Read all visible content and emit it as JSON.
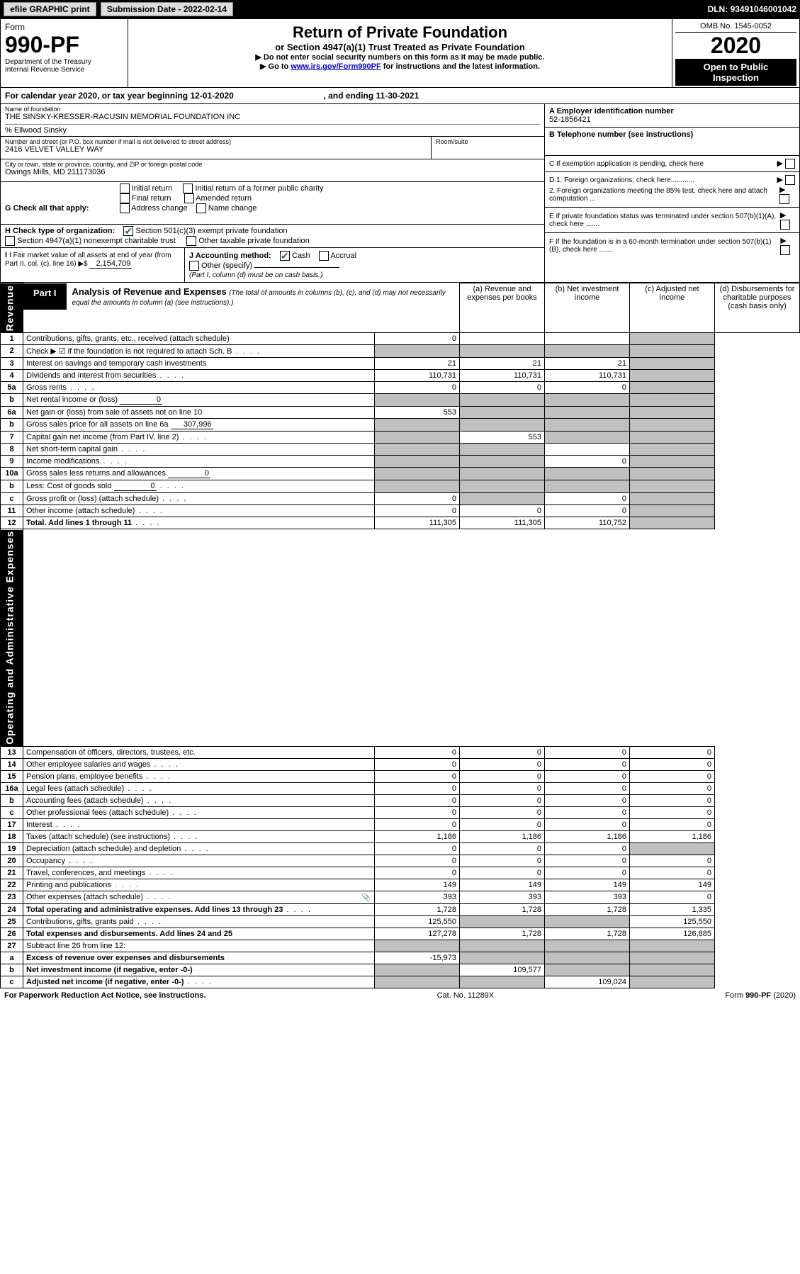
{
  "topbar": {
    "efile_btn": "efile GRAPHIC print",
    "submission_label": "Submission Date - ",
    "submission_date": "2022-02-14",
    "dln_label": "DLN: ",
    "dln": "93491046001042"
  },
  "header": {
    "form_label": "Form",
    "form_number": "990-PF",
    "dept1": "Department of the Treasury",
    "dept2": "Internal Revenue Service",
    "title": "Return of Private Foundation",
    "subtitle": "or Section 4947(a)(1) Trust Treated as Private Foundation",
    "instr1": "▶ Do not enter social security numbers on this form as it may be made public.",
    "instr2_pre": "▶ Go to ",
    "instr2_link": "www.irs.gov/Form990PF",
    "instr2_post": " for instructions and the latest information.",
    "omb": "OMB No. 1545-0052",
    "year": "2020",
    "open1": "Open to Public",
    "open2": "Inspection"
  },
  "cal": {
    "text_pre": "For calendar year 2020, or tax year beginning ",
    "begin": "12-01-2020",
    "mid": " , and ending ",
    "end": "11-30-2021"
  },
  "entity": {
    "name_lbl": "Name of foundation",
    "name": "THE SINSKY-KRESSER-RACUSIN MEMORIAL FOUNDATION INC",
    "care_of": "% Ellwood Sinsky",
    "addr_lbl": "Number and street (or P.O. box number if mail is not delivered to street address)",
    "addr": "2416 VELVET VALLEY WAY",
    "room_lbl": "Room/suite",
    "room": "",
    "city_lbl": "City or town, state or province, country, and ZIP or foreign postal code",
    "city": "Owings Mills, MD  211173036",
    "ein_lbl": "A Employer identification number",
    "ein": "52-1856421",
    "tel_lbl": "B Telephone number (see instructions)",
    "tel": "",
    "c_lbl": "C  If exemption application is pending, check here",
    "d1": "D 1. Foreign organizations, check here............",
    "d2": "2. Foreign organizations meeting the 85% test, check here and attach computation ...",
    "e": "E  If private foundation status was terminated under section 507(b)(1)(A), check here .......",
    "f": "F  If the foundation is in a 60-month termination under section 507(b)(1)(B), check here .......",
    "g_lbl": "G Check all that apply:",
    "g_opts": [
      "Initial return",
      "Initial return of a former public charity",
      "Final return",
      "Amended return",
      "Address change",
      "Name change"
    ],
    "h_lbl": "H Check type of organization:",
    "h1": "Section 501(c)(3) exempt private foundation",
    "h2": "Section 4947(a)(1) nonexempt charitable trust",
    "h3": "Other taxable private foundation",
    "i_lbl": "I Fair market value of all assets at end of year (from Part II, col. (c), line 16) ▶$ ",
    "i_val": "2,154,709",
    "j_lbl": "J Accounting method:",
    "j_cash": "Cash",
    "j_accrual": "Accrual",
    "j_other": "Other (specify)",
    "j_note": "(Part I, column (d) must be on cash basis.)"
  },
  "part1": {
    "tab": "Part I",
    "title": "Analysis of Revenue and Expenses",
    "note": "(The total of amounts in columns (b), (c), and (d) may not necessarily equal the amounts in column (a) (see instructions).)",
    "col_a": "(a)  Revenue and expenses per books",
    "col_b": "(b)  Net investment income",
    "col_c": "(c)  Adjusted net income",
    "col_d": "(d)  Disbursements for charitable purposes (cash basis only)"
  },
  "side": {
    "revenue": "Revenue",
    "expenses": "Operating and Administrative Expenses"
  },
  "rows": [
    {
      "n": "1",
      "desc": "Contributions, gifts, grants, etc., received (attach schedule)",
      "a": "0",
      "b": "",
      "c": "",
      "d": "",
      "d_grey": true
    },
    {
      "n": "2",
      "desc": "Check ▶ ☑ if the foundation is not required to attach Sch. B",
      "dots": true,
      "a": "",
      "b": "",
      "c": "",
      "d": "",
      "b_grey": true,
      "c_grey": true,
      "d_grey": true,
      "a_grey": true
    },
    {
      "n": "3",
      "desc": "Interest on savings and temporary cash investments",
      "a": "21",
      "b": "21",
      "c": "21",
      "d": "",
      "d_grey": true
    },
    {
      "n": "4",
      "desc": "Dividends and interest from securities",
      "dots": true,
      "a": "110,731",
      "b": "110,731",
      "c": "110,731",
      "d": "",
      "d_grey": true
    },
    {
      "n": "5a",
      "desc": "Gross rents",
      "dots": true,
      "a": "0",
      "b": "0",
      "c": "0",
      "d": "",
      "d_grey": true
    },
    {
      "n": "b",
      "desc": "Net rental income or (loss)",
      "inline": "0",
      "a": "",
      "b": "",
      "c": "",
      "d": "",
      "a_grey": true,
      "b_grey": true,
      "c_grey": true,
      "d_grey": true
    },
    {
      "n": "6a",
      "desc": "Net gain or (loss) from sale of assets not on line 10",
      "a": "553",
      "b": "",
      "c": "",
      "d": "",
      "b_grey": true,
      "c_grey": true,
      "d_grey": true
    },
    {
      "n": "b",
      "desc": "Gross sales price for all assets on line 6a",
      "inline": "307,996",
      "a": "",
      "b": "",
      "c": "",
      "d": "",
      "a_grey": true,
      "b_grey": true,
      "c_grey": true,
      "d_grey": true
    },
    {
      "n": "7",
      "desc": "Capital gain net income (from Part IV, line 2)",
      "dots": true,
      "a": "",
      "b": "553",
      "c": "",
      "d": "",
      "a_grey": true,
      "c_grey": true,
      "d_grey": true
    },
    {
      "n": "8",
      "desc": "Net short-term capital gain",
      "dots": true,
      "a": "",
      "b": "",
      "c": "",
      "d": "",
      "a_grey": true,
      "b_grey": true,
      "d_grey": true
    },
    {
      "n": "9",
      "desc": "Income modifications",
      "dots": true,
      "a": "",
      "b": "",
      "c": "0",
      "d": "",
      "a_grey": true,
      "b_grey": true,
      "d_grey": true
    },
    {
      "n": "10a",
      "desc": "Gross sales less returns and allowances",
      "inline": "0",
      "a": "",
      "b": "",
      "c": "",
      "d": "",
      "a_grey": true,
      "b_grey": true,
      "c_grey": true,
      "d_grey": true
    },
    {
      "n": "b",
      "desc": "Less: Cost of goods sold",
      "dots": true,
      "inline": "0",
      "a": "",
      "b": "",
      "c": "",
      "d": "",
      "a_grey": true,
      "b_grey": true,
      "c_grey": true,
      "d_grey": true
    },
    {
      "n": "c",
      "desc": "Gross profit or (loss) (attach schedule)",
      "dots": true,
      "a": "0",
      "b": "",
      "c": "0",
      "d": "",
      "b_grey": true,
      "d_grey": true
    },
    {
      "n": "11",
      "desc": "Other income (attach schedule)",
      "dots": true,
      "a": "0",
      "b": "0",
      "c": "0",
      "d": "",
      "d_grey": true
    },
    {
      "n": "12",
      "desc": "Total. Add lines 1 through 11",
      "dots": true,
      "bold": true,
      "a": "111,305",
      "b": "111,305",
      "c": "110,752",
      "d": "",
      "d_grey": true
    },
    {
      "n": "13",
      "desc": "Compensation of officers, directors, trustees, etc.",
      "a": "0",
      "b": "0",
      "c": "0",
      "d": "0"
    },
    {
      "n": "14",
      "desc": "Other employee salaries and wages",
      "dots": true,
      "a": "0",
      "b": "0",
      "c": "0",
      "d": "0"
    },
    {
      "n": "15",
      "desc": "Pension plans, employee benefits",
      "dots": true,
      "a": "0",
      "b": "0",
      "c": "0",
      "d": "0"
    },
    {
      "n": "16a",
      "desc": "Legal fees (attach schedule)",
      "dots": true,
      "a": "0",
      "b": "0",
      "c": "0",
      "d": "0"
    },
    {
      "n": "b",
      "desc": "Accounting fees (attach schedule)",
      "dots": true,
      "a": "0",
      "b": "0",
      "c": "0",
      "d": "0"
    },
    {
      "n": "c",
      "desc": "Other professional fees (attach schedule)",
      "dots": true,
      "a": "0",
      "b": "0",
      "c": "0",
      "d": "0"
    },
    {
      "n": "17",
      "desc": "Interest",
      "dots": true,
      "a": "0",
      "b": "0",
      "c": "0",
      "d": "0"
    },
    {
      "n": "18",
      "desc": "Taxes (attach schedule) (see instructions)",
      "dots": true,
      "a": "1,186",
      "b": "1,186",
      "c": "1,186",
      "d": "1,186"
    },
    {
      "n": "19",
      "desc": "Depreciation (attach schedule) and depletion",
      "dots": true,
      "a": "0",
      "b": "0",
      "c": "0",
      "d": "",
      "d_grey": true
    },
    {
      "n": "20",
      "desc": "Occupancy",
      "dots": true,
      "a": "0",
      "b": "0",
      "c": "0",
      "d": "0"
    },
    {
      "n": "21",
      "desc": "Travel, conferences, and meetings",
      "dots": true,
      "a": "0",
      "b": "0",
      "c": "0",
      "d": "0"
    },
    {
      "n": "22",
      "desc": "Printing and publications",
      "dots": true,
      "a": "149",
      "b": "149",
      "c": "149",
      "d": "149"
    },
    {
      "n": "23",
      "desc": "Other expenses (attach schedule)",
      "dots": true,
      "icon": true,
      "a": "393",
      "b": "393",
      "c": "393",
      "d": "0"
    },
    {
      "n": "24",
      "desc": "Total operating and administrative expenses. Add lines 13 through 23",
      "dots": true,
      "bold": true,
      "a": "1,728",
      "b": "1,728",
      "c": "1,728",
      "d": "1,335"
    },
    {
      "n": "25",
      "desc": "Contributions, gifts, grants paid",
      "dots": true,
      "a": "125,550",
      "b": "",
      "c": "",
      "d": "125,550",
      "b_grey": true,
      "c_grey": true
    },
    {
      "n": "26",
      "desc": "Total expenses and disbursements. Add lines 24 and 25",
      "bold": true,
      "a": "127,278",
      "b": "1,728",
      "c": "1,728",
      "d": "126,885"
    },
    {
      "n": "27",
      "desc": "Subtract line 26 from line 12:",
      "a": "",
      "b": "",
      "c": "",
      "d": "",
      "a_grey": true,
      "b_grey": true,
      "c_grey": true,
      "d_grey": true
    },
    {
      "n": "a",
      "desc": "Excess of revenue over expenses and disbursements",
      "bold": true,
      "a": "-15,973",
      "b": "",
      "c": "",
      "d": "",
      "b_grey": true,
      "c_grey": true,
      "d_grey": true
    },
    {
      "n": "b",
      "desc": "Net investment income (if negative, enter -0-)",
      "bold": true,
      "a": "",
      "b": "109,577",
      "c": "",
      "d": "",
      "a_grey": true,
      "c_grey": true,
      "d_grey": true
    },
    {
      "n": "c",
      "desc": "Adjusted net income (if negative, enter -0-)",
      "dots": true,
      "bold": true,
      "a": "",
      "b": "",
      "c": "109,024",
      "d": "",
      "a_grey": true,
      "b_grey": true,
      "d_grey": true
    }
  ],
  "footer": {
    "left": "For Paperwork Reduction Act Notice, see instructions.",
    "mid": "Cat. No. 11289X",
    "right_pre": "Form ",
    "right_form": "990-PF",
    "right_post": " (2020)"
  }
}
